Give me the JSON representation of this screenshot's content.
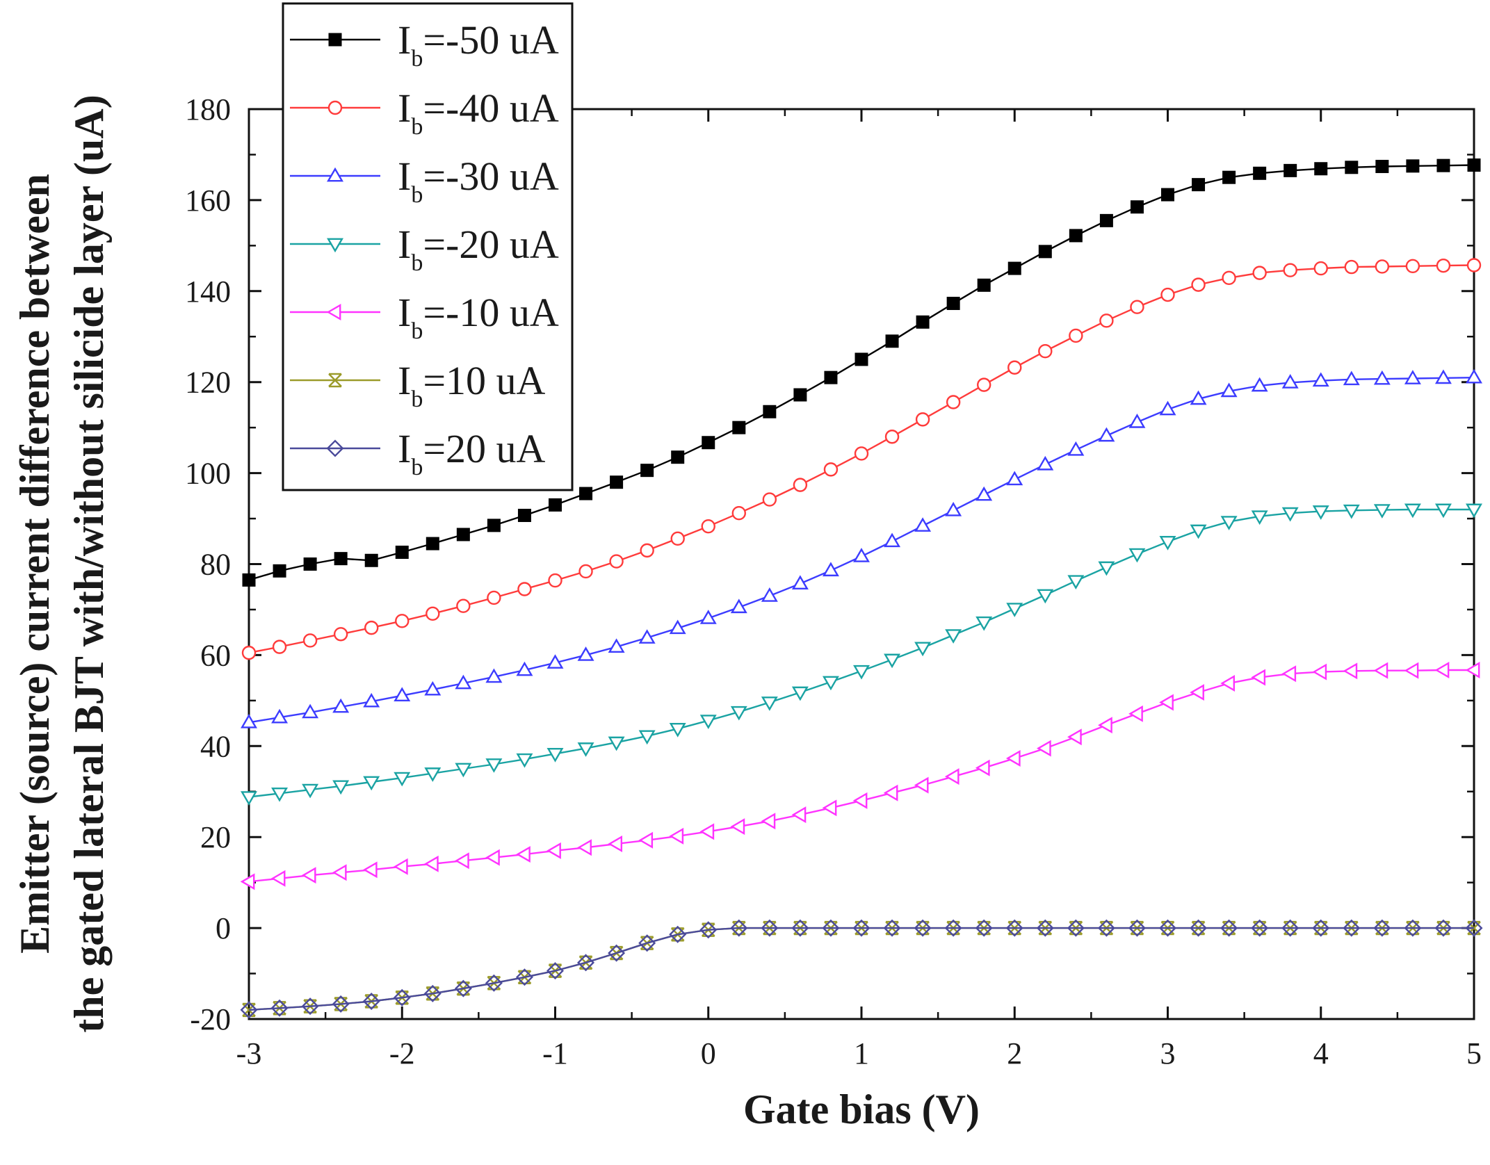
{
  "chart_data": {
    "type": "line",
    "xlabel": "Gate bias (V)",
    "ylabel_lines": [
      "Emitter (source) current difference between",
      "the gated lateral BJT with/without silicide layer (uA)"
    ],
    "xlim": [
      -3,
      5
    ],
    "ylim": [
      -20,
      180
    ],
    "xticks": [
      "-3",
      "-2",
      "-1",
      "0",
      "1",
      "2",
      "3",
      "4",
      "5"
    ],
    "yticks": [
      "-20",
      "0",
      "20",
      "40",
      "60",
      "80",
      "100",
      "120",
      "140",
      "160",
      "180"
    ],
    "x_points": {
      "start": -3,
      "step": 0.2,
      "count": 41
    },
    "series": [
      {
        "name": "I_b=-50 uA",
        "label_pre": "I",
        "label_sub": "b",
        "label_post": "=-50 uA",
        "color": "#000000",
        "marker": "square-filled",
        "anchors": [
          [
            -3,
            76.5
          ],
          [
            -2.8,
            78.5
          ],
          [
            -2.6,
            80
          ],
          [
            -2.4,
            81.2
          ],
          [
            -2.2,
            80.8
          ],
          [
            -2,
            82.6
          ],
          [
            -1.8,
            84.5
          ],
          [
            -1.6,
            86.5
          ],
          [
            -1.4,
            88.5
          ],
          [
            -1.2,
            90.7
          ],
          [
            -1,
            93
          ],
          [
            -0.8,
            95.5
          ],
          [
            -0.6,
            98
          ],
          [
            -0.4,
            100.6
          ],
          [
            -0.2,
            103.5
          ],
          [
            0,
            106.7
          ],
          [
            0.2,
            110
          ],
          [
            0.4,
            113.5
          ],
          [
            0.6,
            117.2
          ],
          [
            0.8,
            121
          ],
          [
            1,
            125
          ],
          [
            1.2,
            129
          ],
          [
            1.4,
            133.2
          ],
          [
            1.6,
            137.3
          ],
          [
            1.8,
            141.3
          ],
          [
            2,
            145
          ],
          [
            2.2,
            148.7
          ],
          [
            2.4,
            152.2
          ],
          [
            2.6,
            155.5
          ],
          [
            2.8,
            158.5
          ],
          [
            3,
            161.2
          ],
          [
            3.2,
            163.4
          ],
          [
            3.4,
            165
          ],
          [
            3.6,
            165.9
          ],
          [
            3.8,
            166.5
          ],
          [
            4,
            166.9
          ],
          [
            4.2,
            167.2
          ],
          [
            4.4,
            167.4
          ],
          [
            4.6,
            167.5
          ],
          [
            4.8,
            167.6
          ],
          [
            5,
            167.7
          ]
        ]
      },
      {
        "name": "I_b=-40 uA",
        "label_pre": "I",
        "label_sub": "b",
        "label_post": "=-40 uA",
        "color": "#ff3b3b",
        "marker": "circle-open",
        "anchors": [
          [
            -3,
            60.5
          ],
          [
            -2.8,
            61.8
          ],
          [
            -2.6,
            63.2
          ],
          [
            -2.4,
            64.6
          ],
          [
            -2.2,
            66
          ],
          [
            -2,
            67.5
          ],
          [
            -1.8,
            69.1
          ],
          [
            -1.6,
            70.8
          ],
          [
            -1.4,
            72.6
          ],
          [
            -1.2,
            74.5
          ],
          [
            -1,
            76.4
          ],
          [
            -0.8,
            78.4
          ],
          [
            -0.6,
            80.6
          ],
          [
            -0.4,
            83
          ],
          [
            -0.2,
            85.6
          ],
          [
            0,
            88.3
          ],
          [
            0.2,
            91.2
          ],
          [
            0.4,
            94.2
          ],
          [
            0.6,
            97.4
          ],
          [
            0.8,
            100.8
          ],
          [
            1,
            104.3
          ],
          [
            1.2,
            108
          ],
          [
            1.4,
            111.8
          ],
          [
            1.6,
            115.6
          ],
          [
            1.8,
            119.4
          ],
          [
            2,
            123.2
          ],
          [
            2.2,
            126.8
          ],
          [
            2.4,
            130.2
          ],
          [
            2.6,
            133.5
          ],
          [
            2.8,
            136.5
          ],
          [
            3,
            139.2
          ],
          [
            3.2,
            141.4
          ],
          [
            3.4,
            142.9
          ],
          [
            3.6,
            144
          ],
          [
            3.8,
            144.6
          ],
          [
            4,
            145
          ],
          [
            4.2,
            145.3
          ],
          [
            4.4,
            145.4
          ],
          [
            4.6,
            145.5
          ],
          [
            4.8,
            145.6
          ],
          [
            5,
            145.7
          ]
        ]
      },
      {
        "name": "I_b=-30 uA",
        "label_pre": "I",
        "label_sub": "b",
        "label_post": "=-30 uA",
        "color": "#3c3cff",
        "marker": "triangle-up-open",
        "anchors": [
          [
            -3,
            45.2
          ],
          [
            -2.8,
            46.3
          ],
          [
            -2.6,
            47.4
          ],
          [
            -2.4,
            48.6
          ],
          [
            -2.2,
            49.8
          ],
          [
            -2,
            51.1
          ],
          [
            -1.8,
            52.4
          ],
          [
            -1.6,
            53.8
          ],
          [
            -1.4,
            55.2
          ],
          [
            -1.2,
            56.7
          ],
          [
            -1,
            58.3
          ],
          [
            -0.8,
            60
          ],
          [
            -0.6,
            61.8
          ],
          [
            -0.4,
            63.8
          ],
          [
            -0.2,
            65.9
          ],
          [
            0,
            68.1
          ],
          [
            0.2,
            70.5
          ],
          [
            0.4,
            73
          ],
          [
            0.6,
            75.7
          ],
          [
            0.8,
            78.6
          ],
          [
            1,
            81.7
          ],
          [
            1.2,
            85
          ],
          [
            1.4,
            88.4
          ],
          [
            1.6,
            91.8
          ],
          [
            1.8,
            95.2
          ],
          [
            2,
            98.6
          ],
          [
            2.2,
            101.9
          ],
          [
            2.4,
            105.1
          ],
          [
            2.6,
            108.2
          ],
          [
            2.8,
            111.2
          ],
          [
            3,
            114
          ],
          [
            3.2,
            116.3
          ],
          [
            3.4,
            118
          ],
          [
            3.6,
            119.2
          ],
          [
            3.8,
            119.9
          ],
          [
            4,
            120.3
          ],
          [
            4.2,
            120.6
          ],
          [
            4.4,
            120.7
          ],
          [
            4.6,
            120.8
          ],
          [
            4.8,
            120.9
          ],
          [
            5,
            121
          ]
        ]
      },
      {
        "name": "I_b=-20 uA",
        "label_pre": "I",
        "label_sub": "b",
        "label_post": "=-20 uA",
        "color": "#1aa3a3",
        "marker": "triangle-down-open",
        "anchors": [
          [
            -3,
            28.8
          ],
          [
            -2.8,
            29.6
          ],
          [
            -2.6,
            30.4
          ],
          [
            -2.4,
            31.2
          ],
          [
            -2.2,
            32.1
          ],
          [
            -2,
            33
          ],
          [
            -1.8,
            34
          ],
          [
            -1.6,
            35
          ],
          [
            -1.4,
            36
          ],
          [
            -1.2,
            37.1
          ],
          [
            -1,
            38.3
          ],
          [
            -0.8,
            39.5
          ],
          [
            -0.6,
            40.8
          ],
          [
            -0.4,
            42.2
          ],
          [
            -0.2,
            43.8
          ],
          [
            0,
            45.6
          ],
          [
            0.2,
            47.5
          ],
          [
            0.4,
            49.6
          ],
          [
            0.6,
            51.8
          ],
          [
            0.8,
            54.1
          ],
          [
            1,
            56.5
          ],
          [
            1.2,
            59
          ],
          [
            1.4,
            61.6
          ],
          [
            1.6,
            64.4
          ],
          [
            1.8,
            67.2
          ],
          [
            2,
            70.2
          ],
          [
            2.2,
            73.2
          ],
          [
            2.4,
            76.3
          ],
          [
            2.6,
            79.3
          ],
          [
            2.8,
            82.2
          ],
          [
            3,
            84.9
          ],
          [
            3.2,
            87.4
          ],
          [
            3.4,
            89.3
          ],
          [
            3.6,
            90.5
          ],
          [
            3.8,
            91.2
          ],
          [
            4,
            91.6
          ],
          [
            4.2,
            91.8
          ],
          [
            4.4,
            91.9
          ],
          [
            4.6,
            92
          ],
          [
            4.8,
            92
          ],
          [
            5,
            92
          ]
        ]
      },
      {
        "name": "I_b=-10 uA",
        "label_pre": "I",
        "label_sub": "b",
        "label_post": "=-10 uA",
        "color": "#ff33ff",
        "marker": "triangle-left-open",
        "anchors": [
          [
            -3,
            10.2
          ],
          [
            -2.8,
            10.9
          ],
          [
            -2.6,
            11.6
          ],
          [
            -2.4,
            12.2
          ],
          [
            -2.2,
            12.8
          ],
          [
            -2,
            13.5
          ],
          [
            -1.8,
            14.1
          ],
          [
            -1.6,
            14.8
          ],
          [
            -1.4,
            15.5
          ],
          [
            -1.2,
            16.2
          ],
          [
            -1,
            17
          ],
          [
            -0.8,
            17.7
          ],
          [
            -0.6,
            18.5
          ],
          [
            -0.4,
            19.3
          ],
          [
            -0.2,
            20.2
          ],
          [
            0,
            21.2
          ],
          [
            0.2,
            22.3
          ],
          [
            0.4,
            23.5
          ],
          [
            0.6,
            24.9
          ],
          [
            0.8,
            26.4
          ],
          [
            1,
            28
          ],
          [
            1.2,
            29.7
          ],
          [
            1.4,
            31.4
          ],
          [
            1.6,
            33.3
          ],
          [
            1.8,
            35.2
          ],
          [
            2,
            37.3
          ],
          [
            2.2,
            39.5
          ],
          [
            2.4,
            42
          ],
          [
            2.6,
            44.6
          ],
          [
            2.8,
            47.1
          ],
          [
            3,
            49.6
          ],
          [
            3.2,
            51.8
          ],
          [
            3.4,
            53.8
          ],
          [
            3.6,
            55.1
          ],
          [
            3.8,
            55.9
          ],
          [
            4,
            56.3
          ],
          [
            4.2,
            56.5
          ],
          [
            4.4,
            56.6
          ],
          [
            4.6,
            56.6
          ],
          [
            4.8,
            56.7
          ],
          [
            5,
            56.7
          ]
        ]
      },
      {
        "name": "I_b=10 uA",
        "label_pre": "I",
        "label_sub": "b",
        "label_post": "=10 uA",
        "color": "#9b9b2a",
        "marker": "cross-open",
        "anchors": [
          [
            -3,
            -18
          ],
          [
            -2.8,
            -17.6
          ],
          [
            -2.6,
            -17.2
          ],
          [
            -2.4,
            -16.7
          ],
          [
            -2.2,
            -16.1
          ],
          [
            -2,
            -15.3
          ],
          [
            -1.8,
            -14.4
          ],
          [
            -1.6,
            -13.3
          ],
          [
            -1.4,
            -12.1
          ],
          [
            -1.2,
            -10.8
          ],
          [
            -1,
            -9.4
          ],
          [
            -0.8,
            -7.6
          ],
          [
            -0.6,
            -5.5
          ],
          [
            -0.4,
            -3.3
          ],
          [
            -0.2,
            -1.4
          ],
          [
            0,
            -0.4
          ],
          [
            0.2,
            0
          ],
          [
            0.4,
            0
          ],
          [
            0.6,
            0
          ],
          [
            0.8,
            0
          ],
          [
            1,
            0
          ],
          [
            1.2,
            0
          ],
          [
            1.4,
            0
          ],
          [
            1.6,
            0
          ],
          [
            1.8,
            0
          ],
          [
            2,
            0
          ],
          [
            2.2,
            0
          ],
          [
            2.4,
            0
          ],
          [
            2.6,
            0
          ],
          [
            2.8,
            0
          ],
          [
            3,
            0
          ],
          [
            3.2,
            0
          ],
          [
            3.4,
            0
          ],
          [
            3.6,
            0
          ],
          [
            3.8,
            0
          ],
          [
            4,
            0
          ],
          [
            4.2,
            0
          ],
          [
            4.4,
            0
          ],
          [
            4.6,
            0
          ],
          [
            4.8,
            0
          ],
          [
            5,
            0
          ]
        ]
      },
      {
        "name": "I_b=20 uA",
        "label_pre": "I",
        "label_sub": "b",
        "label_post": "=20 uA",
        "color": "#4a4a9a",
        "marker": "diamond-open",
        "anchors": [
          [
            -3,
            -18
          ],
          [
            -2.8,
            -17.6
          ],
          [
            -2.6,
            -17.2
          ],
          [
            -2.4,
            -16.7
          ],
          [
            -2.2,
            -16.1
          ],
          [
            -2,
            -15.3
          ],
          [
            -1.8,
            -14.4
          ],
          [
            -1.6,
            -13.3
          ],
          [
            -1.4,
            -12.1
          ],
          [
            -1.2,
            -10.8
          ],
          [
            -1,
            -9.4
          ],
          [
            -0.8,
            -7.6
          ],
          [
            -0.6,
            -5.5
          ],
          [
            -0.4,
            -3.3
          ],
          [
            -0.2,
            -1.4
          ],
          [
            0,
            -0.4
          ],
          [
            0.2,
            0
          ],
          [
            0.4,
            0
          ],
          [
            0.6,
            0
          ],
          [
            0.8,
            0
          ],
          [
            1,
            0
          ],
          [
            1.2,
            0
          ],
          [
            1.4,
            0
          ],
          [
            1.6,
            0
          ],
          [
            1.8,
            0
          ],
          [
            2,
            0
          ],
          [
            2.2,
            0
          ],
          [
            2.4,
            0
          ],
          [
            2.6,
            0
          ],
          [
            2.8,
            0
          ],
          [
            3,
            0
          ],
          [
            3.2,
            0
          ],
          [
            3.4,
            0
          ],
          [
            3.6,
            0
          ],
          [
            3.8,
            0
          ],
          [
            4,
            0
          ],
          [
            4.2,
            0
          ],
          [
            4.4,
            0
          ],
          [
            4.6,
            0
          ],
          [
            4.8,
            0
          ],
          [
            5,
            0
          ]
        ]
      }
    ],
    "legend_position": "top-left"
  }
}
